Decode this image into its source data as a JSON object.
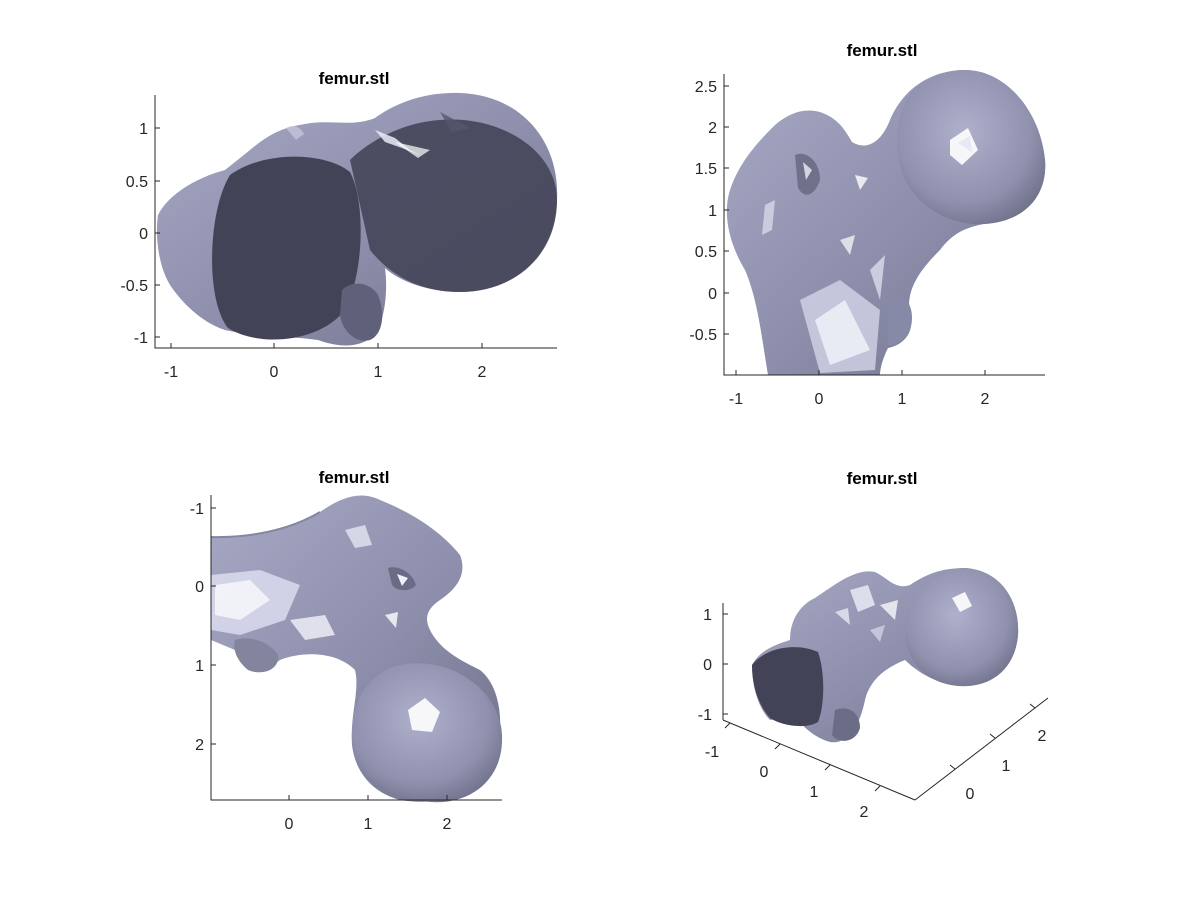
{
  "chart_data": [
    {
      "type": "3d-surface",
      "title": "femur.stl",
      "view": "top",
      "xlabel": "",
      "ylabel": "",
      "x_ticks": [
        "-1",
        "0",
        "1",
        "2"
      ],
      "y_ticks": [
        "1",
        "0.5",
        "0",
        "-0.5",
        "-1"
      ],
      "xlim": [
        -1.2,
        2.7
      ],
      "ylim": [
        -1.1,
        1.35
      ],
      "color": "#9b9dba",
      "shadow_color": "#45465a"
    },
    {
      "type": "3d-surface",
      "title": "femur.stl",
      "view": "front",
      "xlabel": "",
      "ylabel": "",
      "x_ticks": [
        "-1",
        "0",
        "1",
        "2"
      ],
      "y_ticks": [
        "2.5",
        "2",
        "1.5",
        "1",
        "0.5",
        "0",
        "-0.5"
      ],
      "xlim": [
        -1.15,
        2.7
      ],
      "ylim": [
        -0.97,
        2.65
      ],
      "color": "#9b9dba",
      "shadow_color": "#45465a"
    },
    {
      "type": "3d-surface",
      "title": "femur.stl",
      "view": "side",
      "xlabel": "",
      "ylabel": "",
      "x_ticks": [
        "0",
        "1",
        "2"
      ],
      "y_ticks": [
        "-1",
        "0",
        "1",
        "2"
      ],
      "xlim": [
        -1.0,
        2.7
      ],
      "ylim": [
        -1.3,
        2.7
      ],
      "color": "#9b9dba",
      "shadow_color": "#45465a"
    },
    {
      "type": "3d-surface",
      "title": "femur.stl",
      "view": "3d",
      "xlabel": "",
      "ylabel": "",
      "zlabel": "",
      "z_ticks": [
        "1",
        "0",
        "-1"
      ],
      "x_ticks": [
        "-1",
        "0",
        "1",
        "2"
      ],
      "y_ticks": [
        "0",
        "1",
        "2"
      ],
      "color": "#9b9dba",
      "shadow_color": "#45465a"
    }
  ]
}
